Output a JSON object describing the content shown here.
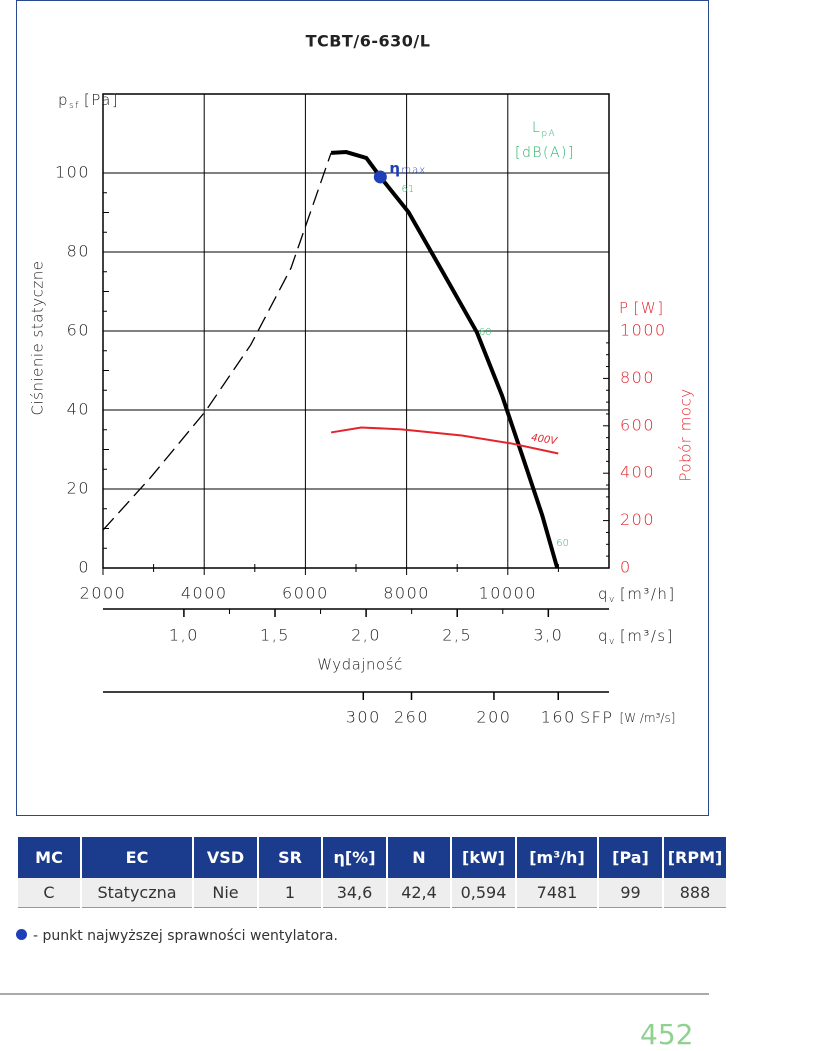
{
  "chart_data": {
    "type": "line",
    "title": "TCBT/6-630/L",
    "xlim": [
      2000,
      12000
    ],
    "xticks": [
      2000,
      4000,
      6000,
      8000,
      10000
    ],
    "ylim": [
      0,
      120
    ],
    "yticks": [
      0,
      20,
      40,
      60,
      80,
      100
    ],
    "y2lim": [
      0,
      2000
    ],
    "y2ticks": [
      0,
      200,
      400,
      600,
      800,
      1000
    ],
    "x2lim": [
      0.556,
      3.333
    ],
    "x2ticks": [
      {
        "value": 1.0,
        "label": "1,0"
      },
      {
        "value": 1.5,
        "label": "1,5"
      },
      {
        "value": 2.0,
        "label": "2,0"
      },
      {
        "value": 2.5,
        "label": "2,5"
      },
      {
        "value": 3.0,
        "label": "3,0"
      }
    ],
    "xlabel_symbol": "q",
    "xlabel_sub": "v",
    "xlabel_unit": "[m³/h]",
    "x2label_unit": "[m³/s]",
    "x_title": "Wydajność",
    "ylabel_symbol": "p",
    "ylabel_sub": "sf",
    "ylabel_unit": "[Pa]",
    "ylabel": "Ciśnienie statyczne",
    "y2label_symbol": "P",
    "y2label_unit": "[W]",
    "y2label": "Pobór mocy",
    "noise_symbol": "L",
    "noise_sub": "pA",
    "noise_unit": "[dB(A)]",
    "grid": true,
    "series": [
      {
        "color": "#000000",
        "style": "dashed",
        "x": [
          2000,
          2933,
          4026,
          4920,
          5714,
          6508
        ],
        "values": [
          9.6,
          22.8,
          39.7,
          56.5,
          75.9,
          105.1
        ]
      },
      {
        "color": "#000000",
        "style": "solid",
        "x": [
          6508,
          6806,
          7204,
          7481,
          8038,
          8693,
          9388,
          9885,
          10282,
          10679,
          10977
        ],
        "values": [
          105.1,
          105.3,
          103.8,
          99,
          90.1,
          75.4,
          59.7,
          43.7,
          28.6,
          13.4,
          0
        ]
      },
      {
        "color": "#e3242b",
        "style": "solid",
        "axis": "y2",
        "x": [
          6508,
          7104,
          7899,
          9090,
          10083,
          10997
        ],
        "values": [
          572,
          593,
          585,
          559,
          525,
          483
        ]
      }
    ],
    "noise_points": [
      {
        "x": 8038,
        "y": 96,
        "value": 61
      },
      {
        "x": 9567,
        "y": 59.7,
        "value": 60
      },
      {
        "x": 11096,
        "y": 6.3,
        "value": 60
      }
    ],
    "power_label": {
      "text": "400V",
      "x": 10739,
      "y": 542
    },
    "eta_max": {
      "symbol": "η",
      "label": "max",
      "x": 7481,
      "y": 99
    },
    "sfp_axis": {
      "label": "SFP",
      "unit": "[W /m³/s]",
      "positions": [
        7144,
        8097,
        9726,
        10997
      ],
      "ticks": [
        300,
        260,
        200,
        160
      ]
    }
  },
  "table": {
    "header": [
      "MC",
      "EC",
      "VSD",
      "SR",
      "η[%]",
      "N",
      "[kW]",
      "[m³/h]",
      "[Pa]",
      "[RPM]"
    ],
    "rows": [
      [
        "C",
        "Statyczna",
        "Nie",
        "1",
        "34,6",
        "42,4",
        "0,594",
        "7481",
        "99",
        "888"
      ]
    ]
  },
  "footnote": "- punkt najwyższej sprawności wentylatora.",
  "page_number": "452"
}
